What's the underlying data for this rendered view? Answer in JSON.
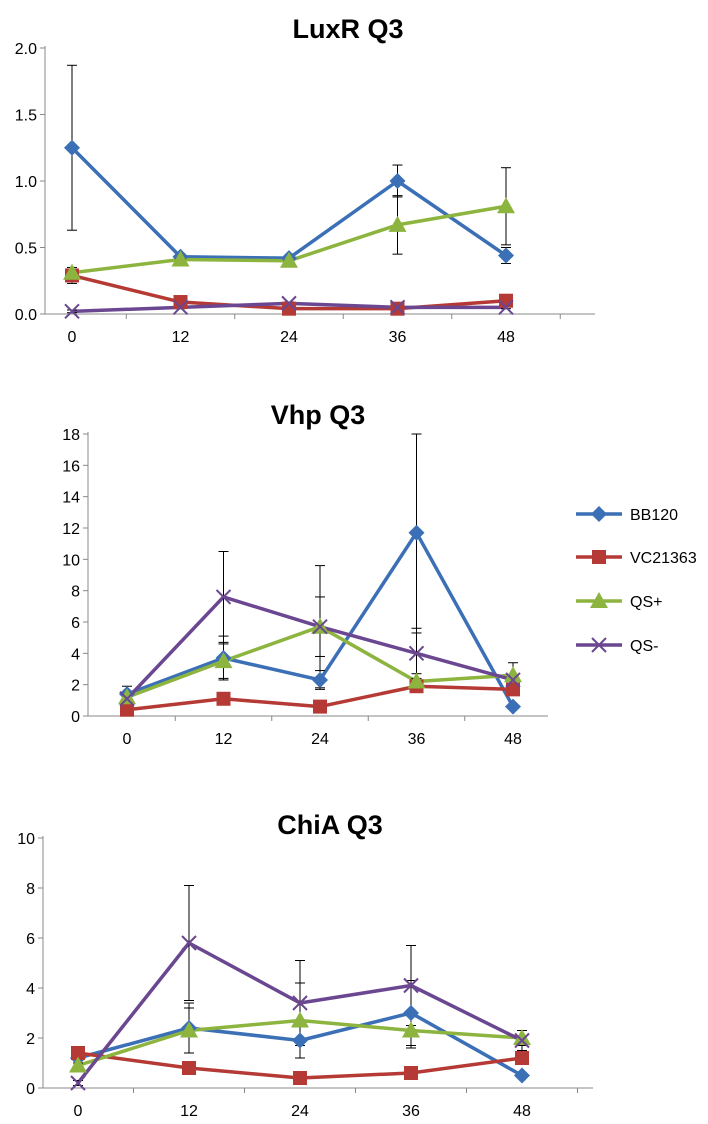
{
  "chart_data": [
    {
      "type": "line",
      "title": "LuxR Q3",
      "xlabel": "",
      "ylabel": "",
      "categories": [
        "0",
        "12",
        "24",
        "36",
        "48"
      ],
      "y_ticks": [
        "0.0",
        "0.5",
        "1.0",
        "1.5",
        "2.0"
      ],
      "ylim": [
        0,
        2
      ],
      "series": [
        {
          "name": "BB120",
          "values": [
            1.25,
            0.43,
            0.42,
            1.0,
            0.44
          ],
          "errors": [
            0.62,
            0.02,
            0.02,
            0.12,
            0.06
          ]
        },
        {
          "name": "VC21363",
          "values": [
            0.29,
            0.09,
            0.04,
            0.04,
            0.1
          ],
          "errors": [
            0.06,
            0.02,
            0.01,
            0.01,
            0.01
          ]
        },
        {
          "name": "QS+",
          "values": [
            0.31,
            0.41,
            0.4,
            0.67,
            0.81
          ],
          "errors": [
            0.02,
            0.01,
            0.01,
            0.22,
            0.29
          ]
        },
        {
          "name": "QS-",
          "values": [
            0.02,
            0.05,
            0.08,
            0.05,
            0.05
          ],
          "errors": [
            0.01,
            0.01,
            0.01,
            0.01,
            0.01
          ]
        }
      ]
    },
    {
      "type": "line",
      "title": "Vhp Q3",
      "xlabel": "",
      "ylabel": "",
      "categories": [
        "0",
        "12",
        "24",
        "36",
        "48"
      ],
      "y_ticks": [
        "0",
        "2",
        "4",
        "6",
        "8",
        "10",
        "12",
        "14",
        "16",
        "18"
      ],
      "ylim": [
        0,
        18
      ],
      "legend_position": "right",
      "series": [
        {
          "name": "BB120",
          "values": [
            1.4,
            3.7,
            2.3,
            11.7,
            0.6
          ],
          "errors": [
            0.5,
            1.4,
            0.6,
            6.4,
            0.1
          ]
        },
        {
          "name": "VC21363",
          "values": [
            0.4,
            1.1,
            0.6,
            1.9,
            1.7
          ],
          "errors": [
            0.1,
            0.2,
            0.1,
            0.2,
            0.2
          ]
        },
        {
          "name": "QS+",
          "values": [
            1.2,
            3.5,
            5.7,
            2.2,
            2.6
          ],
          "errors": [
            0.3,
            1.1,
            1.9,
            0.5,
            0.8
          ]
        },
        {
          "name": "QS-",
          "values": [
            1.1,
            7.6,
            5.7,
            4.0,
            2.3
          ],
          "errors": [
            0.2,
            2.9,
            3.9,
            1.6,
            0.3
          ]
        }
      ]
    },
    {
      "type": "line",
      "title": "ChiA Q3",
      "xlabel": "",
      "ylabel": "",
      "categories": [
        "0",
        "12",
        "24",
        "36",
        "48"
      ],
      "y_ticks": [
        "0",
        "2",
        "4",
        "6",
        "8",
        "10"
      ],
      "ylim": [
        0,
        10
      ],
      "series": [
        {
          "name": "BB120",
          "values": [
            1.2,
            2.4,
            1.9,
            3.0,
            0.5
          ],
          "errors": [
            0.1,
            1.0,
            0.7,
            1.3,
            0.1
          ]
        },
        {
          "name": "VC21363",
          "values": [
            1.4,
            0.8,
            0.4,
            0.6,
            1.2
          ],
          "errors": [
            0.1,
            0.1,
            0.1,
            0.1,
            0.2
          ]
        },
        {
          "name": "QS+",
          "values": [
            0.9,
            2.3,
            2.7,
            2.3,
            2.0
          ],
          "errors": [
            0.1,
            0.9,
            1.5,
            0.7,
            0.3
          ]
        },
        {
          "name": "QS-",
          "values": [
            0.2,
            5.8,
            3.4,
            4.1,
            1.9
          ],
          "errors": [
            0.1,
            2.3,
            1.7,
            1.6,
            0.4
          ]
        }
      ]
    }
  ],
  "legend": {
    "items": [
      {
        "label": "BB120",
        "color": "#3b6fb6",
        "marker": "diamond"
      },
      {
        "label": "VC21363",
        "color": "#b53a35",
        "marker": "square"
      },
      {
        "label": "QS+",
        "color": "#8cb43e",
        "marker": "triangle"
      },
      {
        "label": "QS-",
        "color": "#6a4790",
        "marker": "cross"
      }
    ]
  }
}
